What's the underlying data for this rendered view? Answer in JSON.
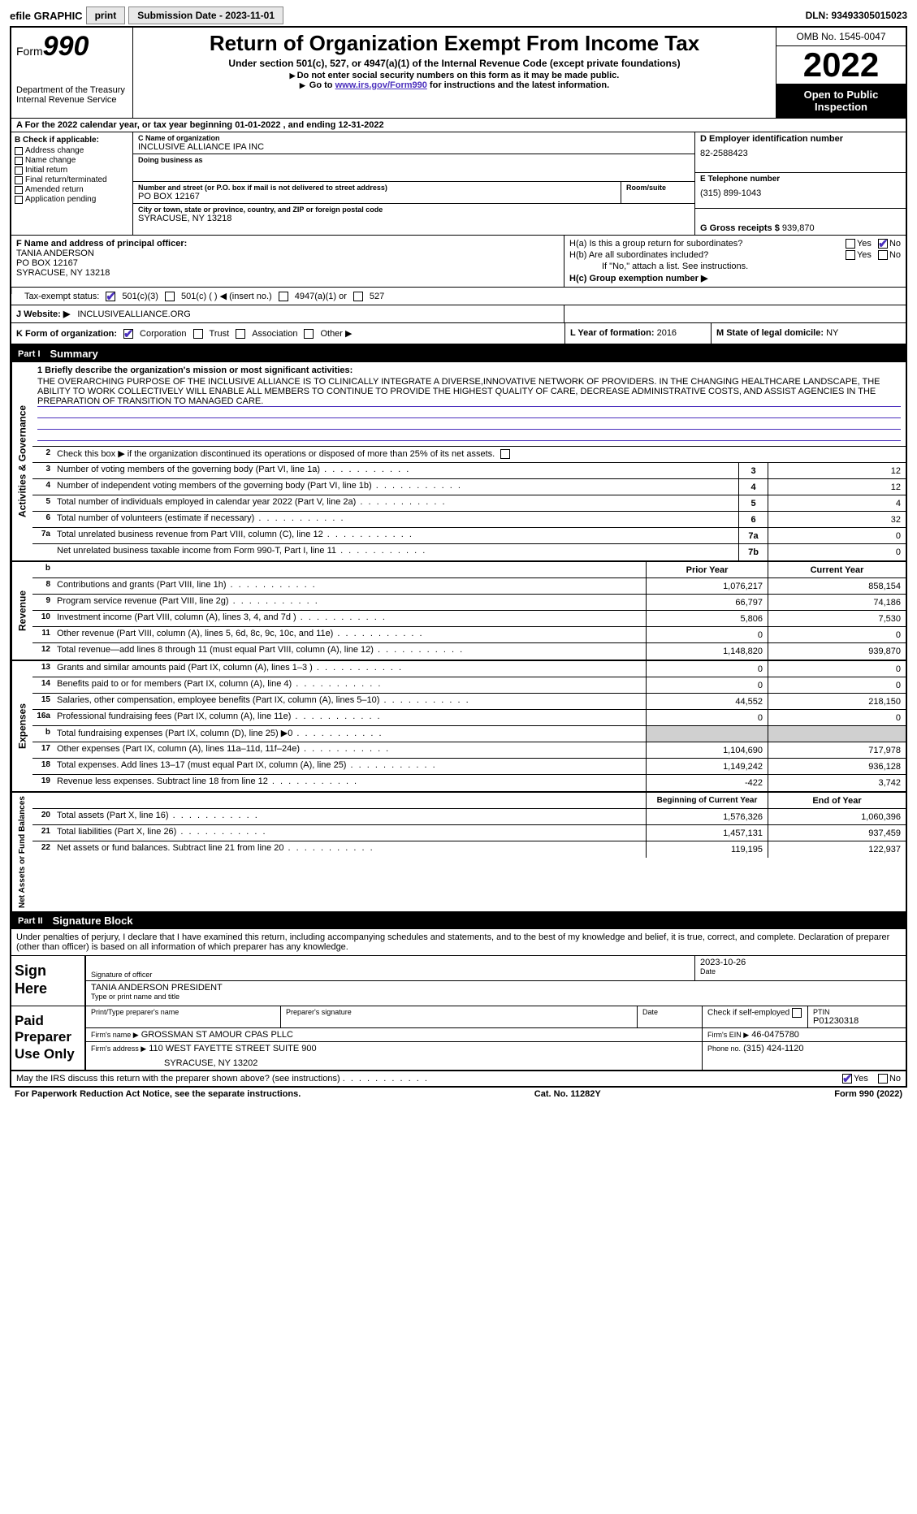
{
  "topbar": {
    "efile": "efile GRAPHIC",
    "print": "print",
    "subdate_label": "Submission Date - 2023-11-01",
    "dln": "DLN: 93493305015023"
  },
  "header": {
    "form_word": "Form",
    "form_num": "990",
    "dept": "Department of the Treasury Internal Revenue Service",
    "title": "Return of Organization Exempt From Income Tax",
    "sub": "Under section 501(c), 527, or 4947(a)(1) of the Internal Revenue Code (except private foundations)",
    "line1": "Do not enter social security numbers on this form as it may be made public.",
    "line2_pre": "Go to ",
    "line2_link": "www.irs.gov/Form990",
    "line2_post": " for instructions and the latest information.",
    "omb": "OMB No. 1545-0047",
    "year": "2022",
    "open": "Open to Public Inspection"
  },
  "row_a": "A For the 2022 calendar year, or tax year beginning 01-01-2022    , and ending 12-31-2022",
  "col_b": {
    "hdr": "B Check if applicable:",
    "items": [
      "Address change",
      "Name change",
      "Initial return",
      "Final return/terminated",
      "Amended return",
      "Application pending"
    ]
  },
  "col_c": {
    "name_lbl": "C Name of organization",
    "name": "INCLUSIVE ALLIANCE IPA INC",
    "dba_lbl": "Doing business as",
    "dba": "",
    "street_lbl": "Number and street (or P.O. box if mail is not delivered to street address)",
    "street": "PO BOX 12167",
    "room_lbl": "Room/suite",
    "city_lbl": "City or town, state or province, country, and ZIP or foreign postal code",
    "city": "SYRACUSE, NY  13218"
  },
  "col_d": {
    "ein_lbl": "D Employer identification number",
    "ein": "82-2588423",
    "tel_lbl": "E Telephone number",
    "tel": "(315) 899-1043",
    "gross_lbl": "G Gross receipts $",
    "gross": "939,870"
  },
  "row_f": {
    "lbl": "F Name and address of principal officer:",
    "name": "TANIA ANDERSON",
    "addr1": "PO BOX 12167",
    "addr2": "SYRACUSE, NY  13218"
  },
  "row_h": {
    "ha": "H(a)  Is this a group return for subordinates?",
    "hb": "H(b)  Are all subordinates included?",
    "hb_note": "If \"No,\" attach a list. See instructions.",
    "hc": "H(c)  Group exemption number ▶",
    "yes": "Yes",
    "no": "No"
  },
  "row_i": {
    "lbl": "Tax-exempt status:",
    "opt1": "501(c)(3)",
    "opt2": "501(c) (  ) ◀ (insert no.)",
    "opt3": "4947(a)(1) or",
    "opt4": "527"
  },
  "row_j": {
    "lbl": "J   Website: ▶",
    "val": "INCLUSIVEALLIANCE.ORG"
  },
  "row_k": {
    "lbl": "K Form of organization:",
    "opts": [
      "Corporation",
      "Trust",
      "Association",
      "Other ▶"
    ],
    "l_lbl": "L Year of formation:",
    "l_val": "2016",
    "m_lbl": "M State of legal domicile:",
    "m_val": "NY"
  },
  "parts": {
    "p1": {
      "num": "Part I",
      "title": "Summary"
    },
    "p2": {
      "num": "Part II",
      "title": "Signature Block"
    }
  },
  "summary": {
    "l1_lbl": "1  Briefly describe the organization's mission or most significant activities:",
    "mission": "THE OVERARCHING PURPOSE OF THE INCLUSIVE ALLIANCE IS TO CLINICALLY INTEGRATE A DIVERSE,INNOVATIVE NETWORK OF PROVIDERS. IN THE CHANGING HEALTHCARE LANDSCAPE, THE ABILITY TO WORK COLLECTIVELY WILL ENABLE ALL MEMBERS TO CONTINUE TO PROVIDE THE HIGHEST QUALITY OF CARE, DECREASE ADMINISTRATIVE COSTS, AND ASSIST AGENCIES IN THE PREPARATION OF TRANSITION TO MANAGED CARE.",
    "l2": "Check this box ▶       if the organization discontinued its operations or disposed of more than 25% of its net assets.",
    "gov_lines": [
      {
        "n": "3",
        "t": "Number of voting members of the governing body (Part VI, line 1a)",
        "b": "3",
        "v": "12"
      },
      {
        "n": "4",
        "t": "Number of independent voting members of the governing body (Part VI, line 1b)",
        "b": "4",
        "v": "12"
      },
      {
        "n": "5",
        "t": "Total number of individuals employed in calendar year 2022 (Part V, line 2a)",
        "b": "5",
        "v": "4"
      },
      {
        "n": "6",
        "t": "Total number of volunteers (estimate if necessary)",
        "b": "6",
        "v": "32"
      },
      {
        "n": "7a",
        "t": "Total unrelated business revenue from Part VIII, column (C), line 12",
        "b": "7a",
        "v": "0"
      },
      {
        "n": "",
        "t": "Net unrelated business taxable income from Form 990-T, Part I, line 11",
        "b": "7b",
        "v": "0"
      }
    ],
    "col_hdr_prior": "Prior Year",
    "col_hdr_curr": "Current Year",
    "rev_lines": [
      {
        "n": "8",
        "t": "Contributions and grants (Part VIII, line 1h)",
        "p": "1,076,217",
        "c": "858,154"
      },
      {
        "n": "9",
        "t": "Program service revenue (Part VIII, line 2g)",
        "p": "66,797",
        "c": "74,186"
      },
      {
        "n": "10",
        "t": "Investment income (Part VIII, column (A), lines 3, 4, and 7d )",
        "p": "5,806",
        "c": "7,530"
      },
      {
        "n": "11",
        "t": "Other revenue (Part VIII, column (A), lines 5, 6d, 8c, 9c, 10c, and 11e)",
        "p": "0",
        "c": "0"
      },
      {
        "n": "12",
        "t": "Total revenue—add lines 8 through 11 (must equal Part VIII, column (A), line 12)",
        "p": "1,148,820",
        "c": "939,870"
      }
    ],
    "exp_lines": [
      {
        "n": "13",
        "t": "Grants and similar amounts paid (Part IX, column (A), lines 1–3 )",
        "p": "0",
        "c": "0"
      },
      {
        "n": "14",
        "t": "Benefits paid to or for members (Part IX, column (A), line 4)",
        "p": "0",
        "c": "0"
      },
      {
        "n": "15",
        "t": "Salaries, other compensation, employee benefits (Part IX, column (A), lines 5–10)",
        "p": "44,552",
        "c": "218,150"
      },
      {
        "n": "16a",
        "t": "Professional fundraising fees (Part IX, column (A), line 11e)",
        "p": "0",
        "c": "0"
      },
      {
        "n": "b",
        "t": "Total fundraising expenses (Part IX, column (D), line 25) ▶0",
        "p": "",
        "c": "",
        "shade": true
      },
      {
        "n": "17",
        "t": "Other expenses (Part IX, column (A), lines 11a–11d, 11f–24e)",
        "p": "1,104,690",
        "c": "717,978"
      },
      {
        "n": "18",
        "t": "Total expenses. Add lines 13–17 (must equal Part IX, column (A), line 25)",
        "p": "1,149,242",
        "c": "936,128"
      },
      {
        "n": "19",
        "t": "Revenue less expenses. Subtract line 18 from line 12",
        "p": "-422",
        "c": "3,742"
      }
    ],
    "col_hdr_begin": "Beginning of Current Year",
    "col_hdr_end": "End of Year",
    "net_lines": [
      {
        "n": "20",
        "t": "Total assets (Part X, line 16)",
        "p": "1,576,326",
        "c": "1,060,396"
      },
      {
        "n": "21",
        "t": "Total liabilities (Part X, line 26)",
        "p": "1,457,131",
        "c": "937,459"
      },
      {
        "n": "22",
        "t": "Net assets or fund balances. Subtract line 21 from line 20",
        "p": "119,195",
        "c": "122,937"
      }
    ],
    "vtabs": {
      "gov": "Activities & Governance",
      "rev": "Revenue",
      "exp": "Expenses",
      "net": "Net Assets or Fund Balances"
    }
  },
  "sig": {
    "penalty": "Under penalties of perjury, I declare that I have examined this return, including accompanying schedules and statements, and to the best of my knowledge and belief, it is true, correct, and complete. Declaration of preparer (other than officer) is based on all information of which preparer has any knowledge.",
    "sign_here": "Sign Here",
    "sig_of_officer": "Signature of officer",
    "date_lbl": "Date",
    "date": "2023-10-26",
    "name_title": "TANIA ANDERSON  PRESIDENT",
    "type_name": "Type or print name and title",
    "paid": "Paid Preparer Use Only",
    "prep_name_lbl": "Print/Type preparer's name",
    "prep_sig_lbl": "Preparer's signature",
    "prep_date_lbl": "Date",
    "check_self": "Check        if self-employed",
    "ptin_lbl": "PTIN",
    "ptin": "P01230318",
    "firm_name_lbl": "Firm's name   ▶",
    "firm_name": "GROSSMAN ST AMOUR CPAS PLLC",
    "firm_ein_lbl": "Firm's EIN ▶",
    "firm_ein": "46-0475780",
    "firm_addr_lbl": "Firm's address ▶",
    "firm_addr1": "110 WEST FAYETTE STREET SUITE 900",
    "firm_addr2": "SYRACUSE, NY  13202",
    "phone_lbl": "Phone no.",
    "phone": "(315) 424-1120",
    "discuss": "May the IRS discuss this return with the preparer shown above? (see instructions)",
    "yes": "Yes",
    "no": "No"
  },
  "footer": {
    "left": "For Paperwork Reduction Act Notice, see the separate instructions.",
    "mid": "Cat. No. 11282Y",
    "right": "Form 990 (2022)"
  }
}
